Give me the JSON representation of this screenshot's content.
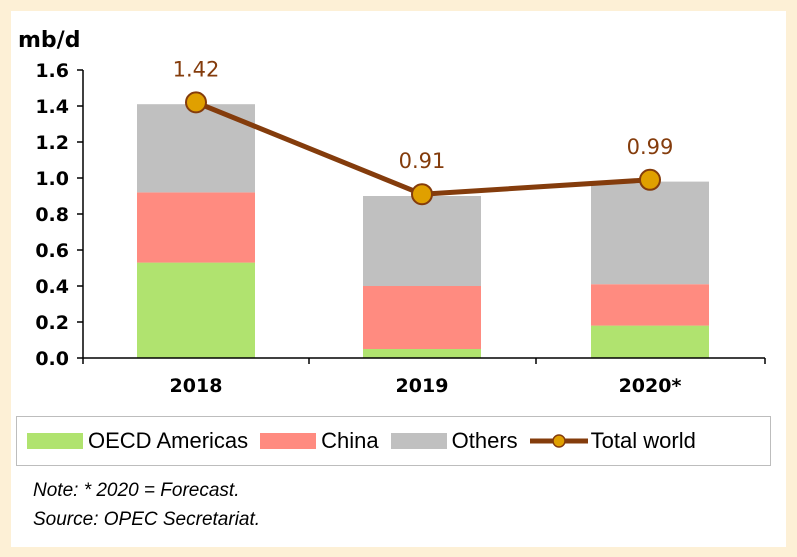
{
  "chart_data": {
    "type": "bar",
    "stacked": true,
    "ylabel": "mb/d",
    "ylim": [
      0,
      1.6
    ],
    "yticks": [
      "0.0",
      "0.2",
      "0.4",
      "0.6",
      "0.8",
      "1.0",
      "1.2",
      "1.4",
      "1.6"
    ],
    "categories": [
      "2018",
      "2019",
      "2020*"
    ],
    "series": [
      {
        "name": "OECD Americas",
        "color": "#b0e36f",
        "values": [
          0.53,
          0.05,
          0.18
        ]
      },
      {
        "name": "China",
        "color": "#ff8b80",
        "values": [
          0.39,
          0.35,
          0.23
        ]
      },
      {
        "name": "Others",
        "color": "#c0c0c0",
        "values": [
          0.49,
          0.5,
          0.57
        ]
      }
    ],
    "line": {
      "name": "Total world",
      "color": "#843c0c",
      "marker_color": "#e0a000",
      "values": [
        1.42,
        0.91,
        0.99
      ],
      "labels": [
        "1.42",
        "0.91",
        "0.99"
      ]
    },
    "legend_position": "bottom"
  },
  "notes": [
    "Note: * 2020 = Forecast.",
    "Source: OPEC Secretariat."
  ]
}
